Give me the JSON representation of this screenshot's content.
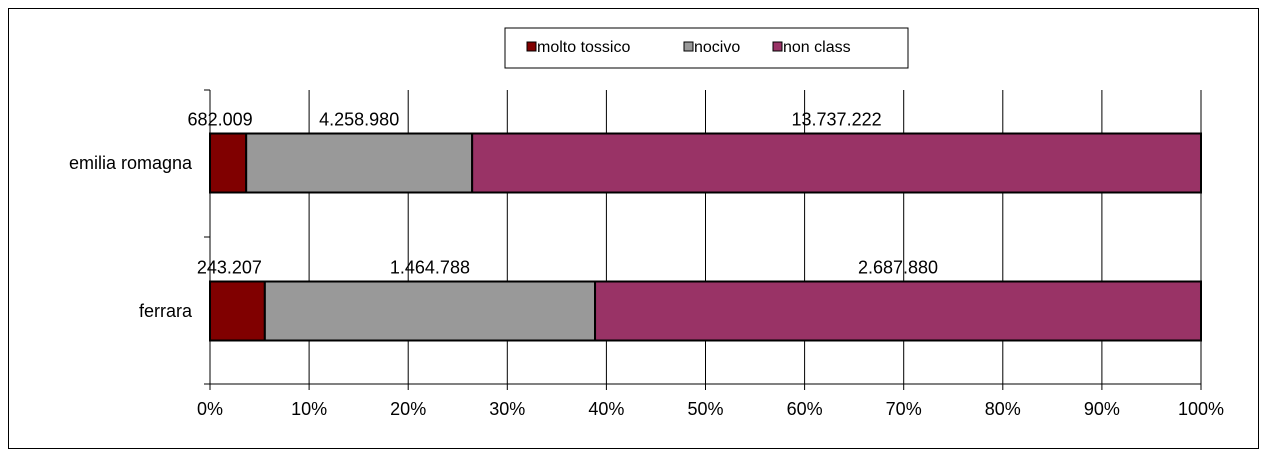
{
  "chart_data": {
    "type": "bar",
    "orientation": "horizontal",
    "stacked": "percent",
    "categories": [
      "emilia romagna",
      "ferrara"
    ],
    "series": [
      {
        "name": "molto tossico",
        "values": [
          682009,
          243207
        ],
        "labels": [
          "682.009",
          "243.207"
        ],
        "color": "#800000"
      },
      {
        "name": "nocivo",
        "values": [
          4258980,
          1464788
        ],
        "labels": [
          "4.258.980",
          "1.464.788"
        ],
        "color": "#999999"
      },
      {
        "name": "non class",
        "values": [
          13737222,
          2687880
        ],
        "labels": [
          "13.737.222",
          "2.687.880"
        ],
        "color": "#993366"
      }
    ],
    "x_ticks": [
      "0%",
      "10%",
      "20%",
      "30%",
      "40%",
      "50%",
      "60%",
      "70%",
      "80%",
      "90%",
      "100%"
    ],
    "xlim": [
      0,
      100
    ],
    "grid": "vertical major gridlines",
    "legend_position": "top"
  }
}
